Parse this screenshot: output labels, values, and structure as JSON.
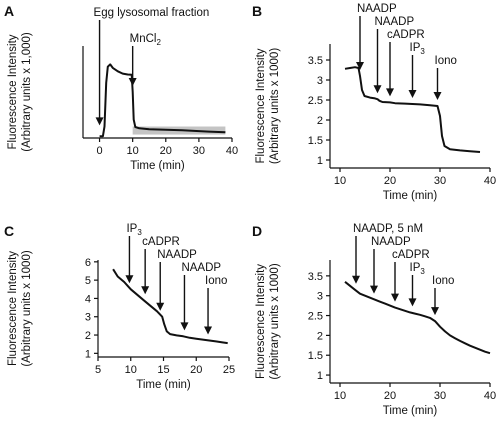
{
  "chart_data": [
    {
      "panel": "A",
      "type": "line",
      "xlabel": "Time (min)",
      "ylabel": "Fluorescence Intensity",
      "ylabel2": "(Arbitrary units x 1,000)",
      "xlim": [
        -5,
        40
      ],
      "ylim": [
        0,
        40
      ],
      "xticks": [
        0,
        10,
        20,
        30,
        40
      ],
      "yticks": [],
      "header": "Egg lysosomal fraction",
      "annotations": [
        {
          "text": "MnCl",
          "sub": "2",
          "x": 10
        }
      ],
      "shade": {
        "x": [
          10,
          38
        ],
        "y": [
          1.5,
          5
        ]
      },
      "series": [
        {
          "points": [
            [
              0,
              0.8
            ],
            [
              1,
              0.8
            ],
            [
              1.5,
              5
            ],
            [
              2,
              24
            ],
            [
              2.5,
              31
            ],
            [
              3.2,
              32
            ],
            [
              4,
              30.5
            ],
            [
              5.5,
              29
            ],
            [
              7,
              28
            ],
            [
              8.5,
              27.6
            ],
            [
              9.7,
              27.5
            ],
            [
              10,
              20
            ],
            [
              10.3,
              8
            ],
            [
              10.8,
              4.8
            ],
            [
              12,
              4.2
            ],
            [
              15,
              3.8
            ],
            [
              20,
              3.6
            ],
            [
              25,
              3.4
            ],
            [
              30,
              3.0
            ],
            [
              33,
              2.8
            ],
            [
              38,
              2.5
            ]
          ]
        }
      ]
    },
    {
      "panel": "B",
      "type": "line",
      "xlabel": "Time (min)",
      "ylabel": "Fluorescence Intensity",
      "ylabel2": "(Arbitrary units x 1000)",
      "xlim": [
        8,
        40
      ],
      "ylim": [
        0.8,
        3.9
      ],
      "xticks": [
        10,
        20,
        30,
        40
      ],
      "yticks": [
        1.0,
        1.5,
        2.0,
        2.5,
        3.0,
        3.5
      ],
      "annotations": [
        {
          "text": "NAADP",
          "x": 14
        },
        {
          "text": "NAADP",
          "x": 17.5
        },
        {
          "text": "cADPR",
          "x": 20
        },
        {
          "text": "IP",
          "sub": "3",
          "x": 24.5
        },
        {
          "text": "Iono",
          "x": 29.5
        }
      ],
      "series": [
        {
          "points": [
            [
              11,
              3.28
            ],
            [
              12,
              3.3
            ],
            [
              13,
              3.32
            ],
            [
              13.7,
              3.3
            ],
            [
              14,
              3.1
            ],
            [
              14.4,
              2.75
            ],
            [
              14.9,
              2.6
            ],
            [
              16,
              2.56
            ],
            [
              17,
              2.54
            ],
            [
              17.5,
              2.52
            ],
            [
              17.9,
              2.48
            ],
            [
              18.5,
              2.45
            ],
            [
              20,
              2.44
            ],
            [
              21,
              2.42
            ],
            [
              23,
              2.41
            ],
            [
              24.5,
              2.4
            ],
            [
              26,
              2.39
            ],
            [
              28,
              2.37
            ],
            [
              29.5,
              2.35
            ],
            [
              30,
              2.1
            ],
            [
              30.4,
              1.6
            ],
            [
              30.9,
              1.35
            ],
            [
              32,
              1.27
            ],
            [
              34,
              1.24
            ],
            [
              36,
              1.22
            ],
            [
              38,
              1.2
            ]
          ]
        }
      ]
    },
    {
      "panel": "C",
      "type": "line",
      "xlabel": "Time (min)",
      "ylabel": "Fluorescence Intensity",
      "ylabel2": "(Arbitrary units x 1000)",
      "xlim": [
        5,
        25
      ],
      "ylim": [
        0.8,
        6.1
      ],
      "xticks": [
        5,
        10,
        15,
        20,
        25
      ],
      "yticks": [
        1,
        2,
        3,
        4,
        5,
        6
      ],
      "annotations": [
        {
          "text": "IP",
          "sub": "3",
          "x": 9.8
        },
        {
          "text": "cADPR",
          "x": 12.2
        },
        {
          "text": "NAADP",
          "x": 14.5
        },
        {
          "text": "NAADP",
          "x": 18.2
        },
        {
          "text": "Iono",
          "x": 21.8
        }
      ],
      "series": [
        {
          "points": [
            [
              7.3,
              5.6
            ],
            [
              8,
              5.2
            ],
            [
              9,
              4.9
            ],
            [
              10,
              4.5
            ],
            [
              11,
              4.2
            ],
            [
              12,
              3.9
            ],
            [
              13,
              3.6
            ],
            [
              14,
              3.3
            ],
            [
              14.8,
              3.0
            ],
            [
              15.1,
              2.6
            ],
            [
              15.5,
              2.2
            ],
            [
              16,
              2.05
            ],
            [
              17,
              1.98
            ],
            [
              18,
              1.93
            ],
            [
              19,
              1.85
            ],
            [
              20,
              1.8
            ],
            [
              21,
              1.75
            ],
            [
              22,
              1.7
            ],
            [
              23,
              1.65
            ],
            [
              24,
              1.6
            ],
            [
              24.8,
              1.56
            ]
          ]
        }
      ]
    },
    {
      "panel": "D",
      "type": "line",
      "xlabel": "Time (min)",
      "ylabel": "Fluorescence Intensity",
      "ylabel2": "(Arbitrary units x 1000)",
      "xlim": [
        8,
        40
      ],
      "ylim": [
        0.8,
        3.9
      ],
      "xticks": [
        10,
        20,
        30,
        40
      ],
      "yticks": [
        1.0,
        1.5,
        2.0,
        2.5,
        3.0,
        3.5
      ],
      "annotations": [
        {
          "text": "NAADP, 5 nM",
          "x": 13.2
        },
        {
          "text": "NAADP",
          "x": 16.8
        },
        {
          "text": "cADPR",
          "x": 21
        },
        {
          "text": "IP",
          "sub": "3",
          "x": 24.5
        },
        {
          "text": "Iono",
          "x": 29
        }
      ],
      "series": [
        {
          "points": [
            [
              11,
              3.35
            ],
            [
              12,
              3.25
            ],
            [
              13,
              3.15
            ],
            [
              14,
              3.05
            ],
            [
              15,
              3.0
            ],
            [
              16,
              2.95
            ],
            [
              17,
              2.9
            ],
            [
              18,
              2.85
            ],
            [
              19,
              2.8
            ],
            [
              20,
              2.75
            ],
            [
              21,
              2.7
            ],
            [
              22,
              2.66
            ],
            [
              23,
              2.62
            ],
            [
              24,
              2.58
            ],
            [
              25,
              2.55
            ],
            [
              26,
              2.52
            ],
            [
              27,
              2.48
            ],
            [
              28,
              2.44
            ],
            [
              29,
              2.36
            ],
            [
              30,
              2.22
            ],
            [
              31,
              2.1
            ],
            [
              32,
              2.0
            ],
            [
              33,
              1.93
            ],
            [
              34,
              1.86
            ],
            [
              35,
              1.8
            ],
            [
              36,
              1.74
            ],
            [
              37,
              1.69
            ],
            [
              38,
              1.64
            ],
            [
              39,
              1.59
            ],
            [
              40,
              1.55
            ]
          ]
        }
      ]
    }
  ]
}
